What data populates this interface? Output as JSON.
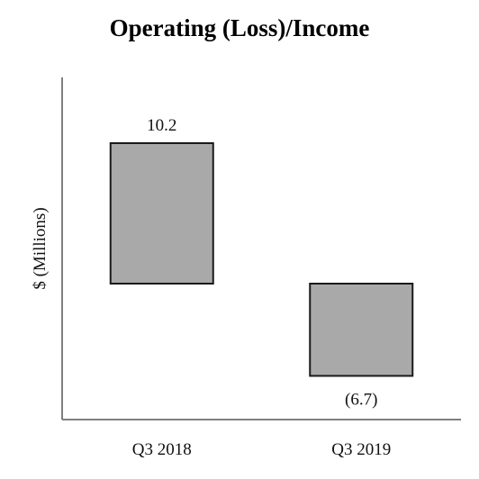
{
  "chart_data": {
    "type": "bar",
    "title": "Operating (Loss)/Income",
    "ylabel": "$ (Millions)",
    "xlabel": "",
    "categories": [
      "Q3 2018",
      "Q3 2019"
    ],
    "values": [
      10.2,
      -6.7
    ],
    "data_labels": [
      "10.2",
      "(6.7)"
    ],
    "ylim": [
      -10,
      15
    ],
    "grid": false,
    "legend": "none",
    "colors": {
      "bar_fill": "#a9a9a9",
      "bar_stroke": "#1a1a1a",
      "axis": "#7f7f7f"
    }
  }
}
